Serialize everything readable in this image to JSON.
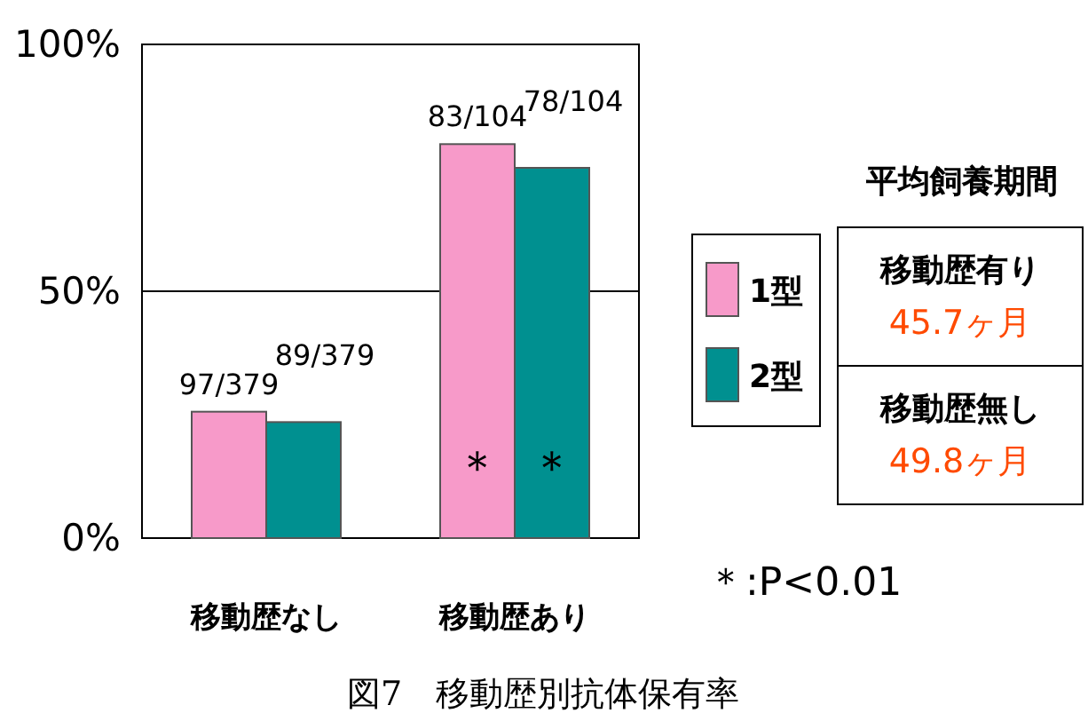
{
  "chart_data": [
    {
      "type": "bar",
      "title": "図7　移動歴別抗体保有率",
      "categories": [
        "移動歴なし",
        "移動歴あり"
      ],
      "series": [
        {
          "name": "1型",
          "color": "#f79ac9",
          "values": [
            25.6,
            79.8
          ],
          "value_labels": [
            "97/379",
            "83/104"
          ]
        },
        {
          "name": "2型",
          "color": "#009090",
          "values": [
            23.5,
            75
          ],
          "value_labels": [
            "89/379",
            "78/104"
          ]
        }
      ],
      "ylim": [
        0,
        100
      ],
      "yticks": [
        {
          "value": 0,
          "label": "0%"
        },
        {
          "value": 50,
          "label": "50%"
        },
        {
          "value": 100,
          "label": "100%"
        }
      ],
      "grid": "y",
      "legend": "right",
      "annotations": [
        {
          "text": "＊",
          "x": "移動歴あり",
          "y": 14
        },
        {
          "text": "＊",
          "x": "移動歴あり",
          "y": 14
        },
        "＊:P<0.01"
      ]
    },
    {
      "type": "other",
      "title": "平均飼養期間",
      "annotations": [
        "移動歴有り",
        "45.7ヶ月",
        "移動歴無し",
        "49.8ヶ月"
      ]
    }
  ]
}
